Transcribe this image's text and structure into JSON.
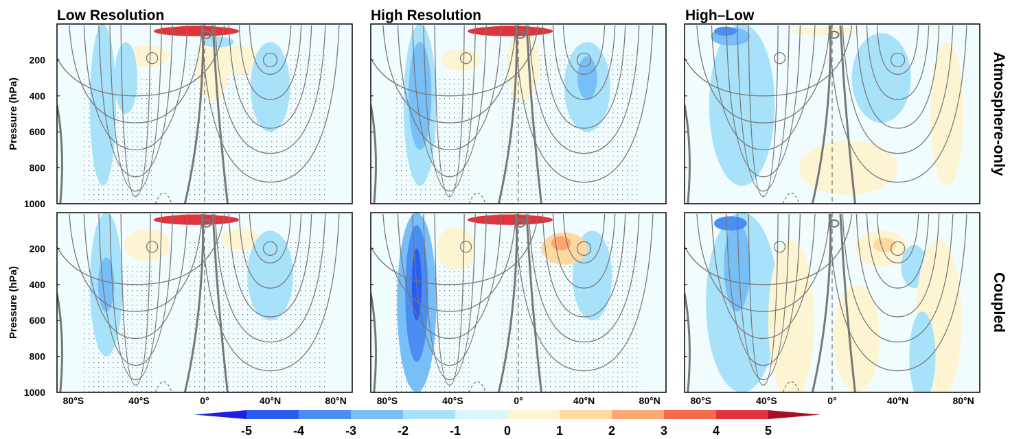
{
  "chart_data": {
    "type": "heatmap",
    "panel_titles": [
      "Low Resolution",
      "High Resolution",
      "High–Low"
    ],
    "row_labels": [
      "Atmosphere-only",
      "Coupled"
    ],
    "ylabel": "Pressure (hPa)",
    "y_ticks": [
      "200",
      "400",
      "600",
      "800",
      "1000"
    ],
    "x_ticks": [
      "80°S",
      "40°S",
      "0°",
      "40°N",
      "80°N"
    ],
    "colorbar": {
      "ticks": [
        "-5",
        "-4",
        "-3",
        "-2",
        "-1",
        "0",
        "1",
        "2",
        "3",
        "4",
        "5"
      ],
      "colors": [
        "#1f1fe0",
        "#2a5cf0",
        "#4a8ef2",
        "#78bff7",
        "#a8e2fa",
        "#d8f6fc",
        "#fdf5d2",
        "#fdd9a0",
        "#fca772",
        "#f46a4c",
        "#e0333c",
        "#a80f24"
      ],
      "extend": "both"
    },
    "panels": [
      {
        "row": 0,
        "col": 0,
        "anoms": [
          {
            "lat": -5,
            "p": 40,
            "rl": 26,
            "rp": 28,
            "v": 5
          },
          {
            "lat": -5,
            "p": 25,
            "rl": 16,
            "rp": 16,
            "v": 4
          },
          {
            "lat": 5,
            "p": 230,
            "rl": 10,
            "rp": 200,
            "v": 1
          },
          {
            "lat": -35,
            "p": 180,
            "rl": 14,
            "rp": 60,
            "v": 1
          },
          {
            "lat": 22,
            "p": 200,
            "rl": 12,
            "rp": 80,
            "v": 1
          },
          {
            "lat": -62,
            "p": 450,
            "rl": 8,
            "rp": 450,
            "v": -1
          },
          {
            "lat": -48,
            "p": 300,
            "rl": 7,
            "rp": 200,
            "v": -1
          },
          {
            "lat": 40,
            "p": 350,
            "rl": 12,
            "rp": 250,
            "v": -1
          },
          {
            "lat": 8,
            "p": 100,
            "rl": 10,
            "rp": 30,
            "v": -1
          }
        ]
      },
      {
        "row": 0,
        "col": 1,
        "anoms": [
          {
            "lat": -5,
            "p": 40,
            "rl": 26,
            "rp": 28,
            "v": 5
          },
          {
            "lat": -5,
            "p": 25,
            "rl": 16,
            "rp": 16,
            "v": 4
          },
          {
            "lat": 3,
            "p": 230,
            "rl": 10,
            "rp": 200,
            "v": 1
          },
          {
            "lat": -35,
            "p": 200,
            "rl": 12,
            "rp": 60,
            "v": 1
          },
          {
            "lat": -60,
            "p": 450,
            "rl": 10,
            "rp": 450,
            "v": -1
          },
          {
            "lat": -60,
            "p": 400,
            "rl": 7,
            "rp": 300,
            "v": -2
          },
          {
            "lat": 42,
            "p": 350,
            "rl": 14,
            "rp": 250,
            "v": -1
          },
          {
            "lat": 42,
            "p": 300,
            "rl": 6,
            "rp": 120,
            "v": -2
          }
        ]
      },
      {
        "row": 0,
        "col": 2,
        "anoms": [
          {
            "lat": -55,
            "p": 450,
            "rl": 20,
            "rp": 450,
            "v": -1
          },
          {
            "lat": -62,
            "p": 70,
            "rl": 12,
            "rp": 50,
            "v": -2
          },
          {
            "lat": -65,
            "p": 40,
            "rl": 7,
            "rp": 25,
            "v": -3
          },
          {
            "lat": -5,
            "p": 40,
            "rl": 20,
            "rp": 25,
            "v": 1
          },
          {
            "lat": 30,
            "p": 300,
            "rl": 18,
            "rp": 250,
            "v": -1
          },
          {
            "lat": 10,
            "p": 800,
            "rl": 30,
            "rp": 150,
            "v": 1
          },
          {
            "lat": 70,
            "p": 500,
            "rl": 10,
            "rp": 400,
            "v": 1
          }
        ]
      },
      {
        "row": 1,
        "col": 0,
        "anoms": [
          {
            "lat": -5,
            "p": 40,
            "rl": 26,
            "rp": 28,
            "v": 5
          },
          {
            "lat": -5,
            "p": 25,
            "rl": 16,
            "rp": 16,
            "v": 4
          },
          {
            "lat": -60,
            "p": 400,
            "rl": 10,
            "rp": 400,
            "v": -1
          },
          {
            "lat": -60,
            "p": 400,
            "rl": 5,
            "rp": 150,
            "v": -2
          },
          {
            "lat": -35,
            "p": 180,
            "rl": 14,
            "rp": 90,
            "v": 1
          },
          {
            "lat": 22,
            "p": 150,
            "rl": 12,
            "rp": 60,
            "v": 1
          },
          {
            "lat": 40,
            "p": 350,
            "rl": 14,
            "rp": 250,
            "v": -1
          }
        ]
      },
      {
        "row": 1,
        "col": 1,
        "anoms": [
          {
            "lat": -5,
            "p": 40,
            "rl": 26,
            "rp": 28,
            "v": 5
          },
          {
            "lat": -5,
            "p": 25,
            "rl": 16,
            "rp": 16,
            "v": 4
          },
          {
            "lat": -62,
            "p": 500,
            "rl": 12,
            "rp": 500,
            "v": -2
          },
          {
            "lat": -62,
            "p": 450,
            "rl": 7,
            "rp": 380,
            "v": -3
          },
          {
            "lat": -62,
            "p": 400,
            "rl": 3,
            "rp": 200,
            "v": -4
          },
          {
            "lat": -38,
            "p": 200,
            "rl": 12,
            "rp": 120,
            "v": 1
          },
          {
            "lat": 28,
            "p": 200,
            "rl": 14,
            "rp": 90,
            "v": 2
          },
          {
            "lat": 26,
            "p": 170,
            "rl": 6,
            "rp": 40,
            "v": 3
          },
          {
            "lat": 45,
            "p": 350,
            "rl": 12,
            "rp": 250,
            "v": -1
          }
        ]
      },
      {
        "row": 1,
        "col": 2,
        "anoms": [
          {
            "lat": -55,
            "p": 500,
            "rl": 22,
            "rp": 500,
            "v": -1
          },
          {
            "lat": -58,
            "p": 300,
            "rl": 8,
            "rp": 250,
            "v": -2
          },
          {
            "lat": -62,
            "p": 60,
            "rl": 10,
            "rp": 40,
            "v": -3
          },
          {
            "lat": -25,
            "p": 600,
            "rl": 14,
            "rp": 450,
            "v": 1
          },
          {
            "lat": 30,
            "p": 200,
            "rl": 16,
            "rp": 100,
            "v": 1
          },
          {
            "lat": 32,
            "p": 180,
            "rl": 7,
            "rp": 40,
            "v": 2
          },
          {
            "lat": 50,
            "p": 300,
            "rl": 8,
            "rp": 120,
            "v": -1
          },
          {
            "lat": 15,
            "p": 700,
            "rl": 14,
            "rp": 300,
            "v": 1
          },
          {
            "lat": 65,
            "p": 600,
            "rl": 14,
            "rp": 450,
            "v": 1
          },
          {
            "lat": 55,
            "p": 800,
            "rl": 8,
            "rp": 250,
            "v": -1
          }
        ]
      }
    ]
  }
}
